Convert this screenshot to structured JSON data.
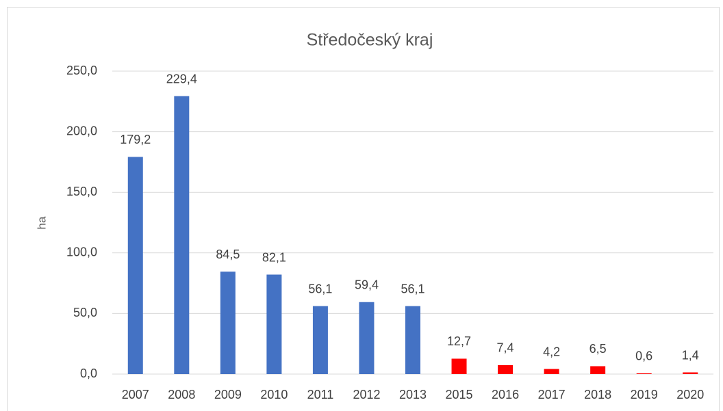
{
  "chart_data": {
    "type": "bar",
    "title": "Středočeský kraj",
    "y_label": "ha",
    "categories": [
      "2007",
      "2008",
      "2009",
      "2010",
      "2011",
      "2012",
      "2013",
      "2015",
      "2016",
      "2017",
      "2018",
      "2019",
      "2020"
    ],
    "values": [
      179.2,
      229.4,
      84.5,
      82.1,
      56.1,
      59.4,
      56.1,
      12.7,
      7.4,
      4.2,
      6.5,
      0.6,
      1.4
    ],
    "value_labels": [
      "179,2",
      "229,4",
      "84,5",
      "82,1",
      "56,1",
      "59,4",
      "56,1",
      "12,7",
      "7,4",
      "4,2",
      "6,5",
      "0,6",
      "1,4"
    ],
    "colors": [
      "#4472c4",
      "#4472c4",
      "#4472c4",
      "#4472c4",
      "#4472c4",
      "#4472c4",
      "#4472c4",
      "#ff0000",
      "#ff0000",
      "#ff0000",
      "#ff0000",
      "#ff0000",
      "#ff0000"
    ],
    "ylim": [
      0,
      250
    ],
    "yticks": [
      {
        "value": 0,
        "label": "0,0"
      },
      {
        "value": 50,
        "label": "50,0"
      },
      {
        "value": 100,
        "label": "100,0"
      },
      {
        "value": 150,
        "label": "150,0"
      },
      {
        "value": 200,
        "label": "200,0"
      },
      {
        "value": 250,
        "label": "250,0"
      }
    ],
    "grid": true
  }
}
